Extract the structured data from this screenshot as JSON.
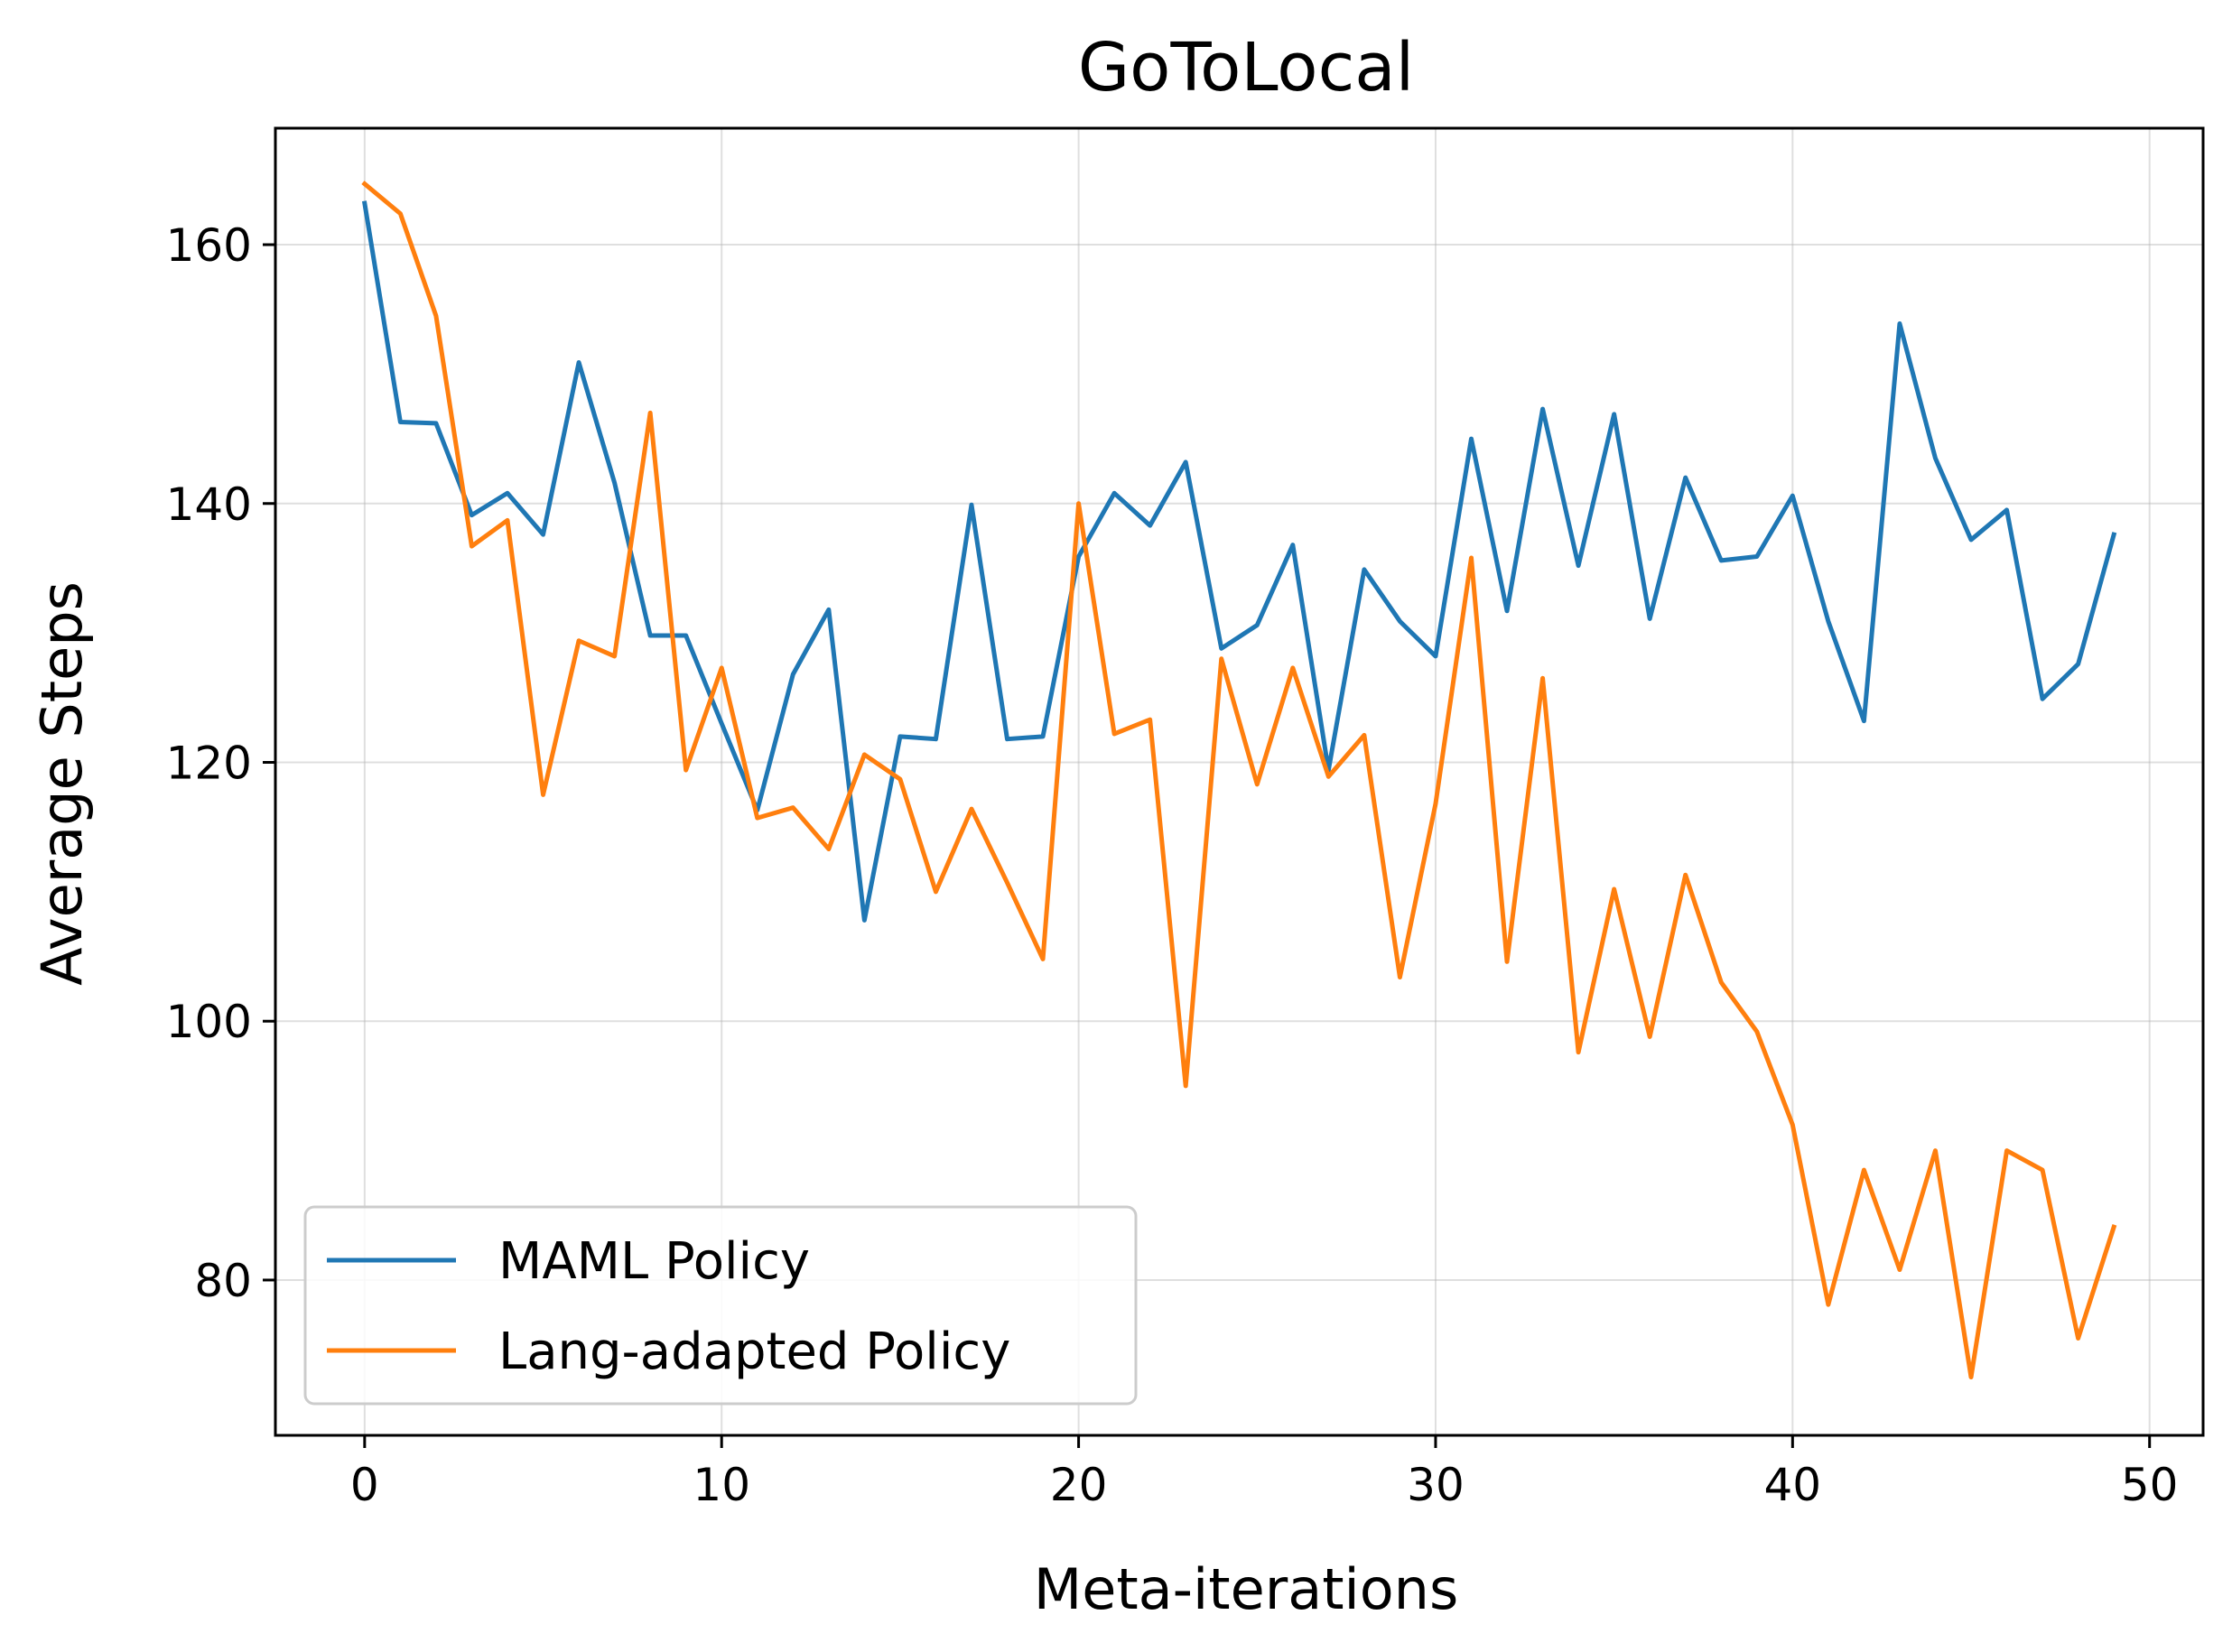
{
  "chart_data": {
    "type": "line",
    "title": "GoToLocal",
    "xlabel": "Meta-iterations",
    "ylabel": "Average Steps",
    "xlim": [
      -2.5,
      51.5
    ],
    "ylim": [
      68,
      169
    ],
    "xticks": [
      0,
      10,
      20,
      30,
      40,
      50
    ],
    "yticks": [
      80,
      100,
      120,
      140,
      160
    ],
    "grid": true,
    "legend_position": "lower-left",
    "x": [
      0,
      1,
      2,
      3,
      4,
      5,
      6,
      7,
      8,
      9,
      10,
      11,
      12,
      13,
      14,
      15,
      16,
      17,
      18,
      19,
      20,
      21,
      22,
      23,
      24,
      25,
      26,
      27,
      28,
      29,
      30,
      31,
      32,
      33,
      34,
      35,
      36,
      37,
      38,
      39,
      40,
      41,
      42,
      43,
      44,
      45,
      46,
      47,
      48,
      49
    ],
    "series": [
      {
        "name": "MAML Policy",
        "color": "#1f77b4",
        "values": [
          163.2,
          146.3,
          146.2,
          139.1,
          140.8,
          137.6,
          150.9,
          141.6,
          129.8,
          129.8,
          123.0,
          116.3,
          126.8,
          131.8,
          107.8,
          122.0,
          121.8,
          139.9,
          121.8,
          122.0,
          135.9,
          140.8,
          138.3,
          143.2,
          128.8,
          130.6,
          136.8,
          119.4,
          134.9,
          130.9,
          128.2,
          145.0,
          131.7,
          147.3,
          135.2,
          146.9,
          131.1,
          142.0,
          135.6,
          135.9,
          140.6,
          130.9,
          123.2,
          153.9,
          143.5,
          137.2,
          139.5,
          124.9,
          127.6,
          137.6
        ]
      },
      {
        "name": "Lang-adapted Policy",
        "color": "#ff7f0e",
        "values": [
          164.7,
          162.4,
          154.5,
          136.7,
          138.7,
          117.5,
          129.4,
          128.2,
          147.0,
          119.4,
          127.3,
          115.7,
          116.5,
          113.3,
          120.6,
          118.7,
          110.0,
          116.4,
          110.7,
          104.8,
          140.0,
          122.2,
          123.3,
          95.0,
          128.0,
          118.3,
          127.3,
          118.9,
          122.1,
          103.4,
          116.8,
          135.8,
          104.6,
          126.5,
          97.6,
          110.2,
          98.8,
          111.3,
          103.0,
          99.2,
          92.0,
          78.1,
          88.5,
          80.8,
          90.0,
          72.5,
          90.0,
          88.5,
          75.5,
          84.1
        ]
      }
    ]
  }
}
